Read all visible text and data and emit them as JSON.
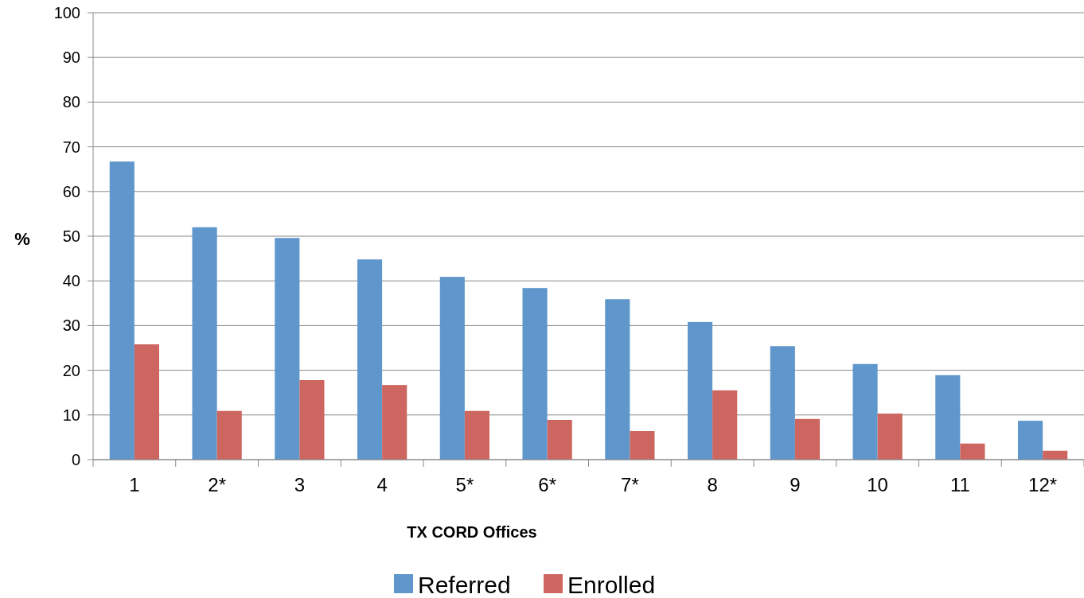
{
  "chart_data": {
    "type": "bar",
    "xlabel": "TX CORD Offices",
    "ylabel": "%",
    "categories": [
      "1",
      "2*",
      "3",
      "4",
      "5*",
      "6*",
      "7*",
      "8",
      "9",
      "10",
      "11",
      "12*"
    ],
    "series": [
      {
        "name": "Referred",
        "color": "#5f97cc",
        "values": [
          66.7,
          52.0,
          49.6,
          44.8,
          40.9,
          38.4,
          35.9,
          30.8,
          25.4,
          21.4,
          18.9,
          8.7
        ]
      },
      {
        "name": "Enrolled",
        "color": "#cd6660",
        "values": [
          25.8,
          10.9,
          17.8,
          16.7,
          10.9,
          8.9,
          6.4,
          15.5,
          9.1,
          10.3,
          3.6,
          2.0
        ]
      }
    ],
    "ylim": [
      0,
      100
    ],
    "yticks": [
      0,
      10,
      20,
      30,
      40,
      50,
      60,
      70,
      80,
      90,
      100
    ],
    "grid": "y",
    "legend": "bottom"
  }
}
